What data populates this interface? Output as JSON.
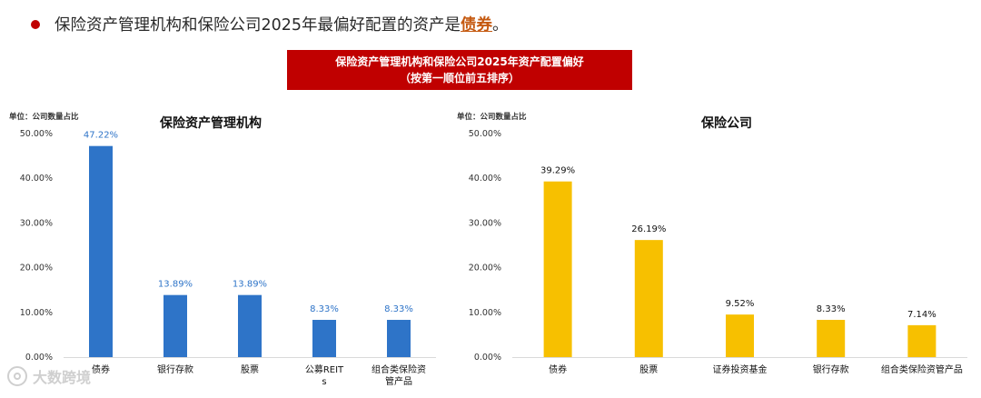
{
  "headline": {
    "prefix": "保险资产管理机构和保险公司2025年最偏好配置的资产是",
    "highlight": "债券",
    "suffix": "。"
  },
  "banner": {
    "line1": "保险资产管理机构和保险公司2025年资产配置偏好",
    "line2": "（按第一顺位前五排序）"
  },
  "watermark": "大数跨境",
  "colors": {
    "left": "#2e74c8",
    "right": "#f7c000",
    "left_label": "#2e74c8",
    "right_label": "#111111",
    "accent": "#c00000"
  },
  "chart_data": [
    {
      "type": "bar",
      "title": "保险资产管理机构",
      "unit_label": "单位：公司数量占比",
      "categories": [
        "债券",
        "银行存款",
        "股票",
        "公募REITs",
        "组合类保险资管产品"
      ],
      "values": [
        47.22,
        13.89,
        13.89,
        8.33,
        8.33
      ],
      "data_labels": [
        "47.22%",
        "13.89%",
        "13.89%",
        "8.33%",
        "8.33%"
      ],
      "yticks": [
        "0.00%",
        "10.00%",
        "20.00%",
        "30.00%",
        "40.00%",
        "50.00%"
      ],
      "ylim": [
        0,
        50
      ],
      "grid": false
    },
    {
      "type": "bar",
      "title": "保险公司",
      "unit_label": "单位：公司数量占比",
      "categories": [
        "债券",
        "股票",
        "证券投资基金",
        "银行存款",
        "组合类保险资管产品"
      ],
      "values": [
        39.29,
        26.19,
        9.52,
        8.33,
        7.14
      ],
      "data_labels": [
        "39.29%",
        "26.19%",
        "9.52%",
        "8.33%",
        "7.14%"
      ],
      "yticks": [
        "0.00%",
        "10.00%",
        "20.00%",
        "30.00%",
        "40.00%",
        "50.00%"
      ],
      "ylim": [
        0,
        50
      ],
      "grid": false
    }
  ]
}
